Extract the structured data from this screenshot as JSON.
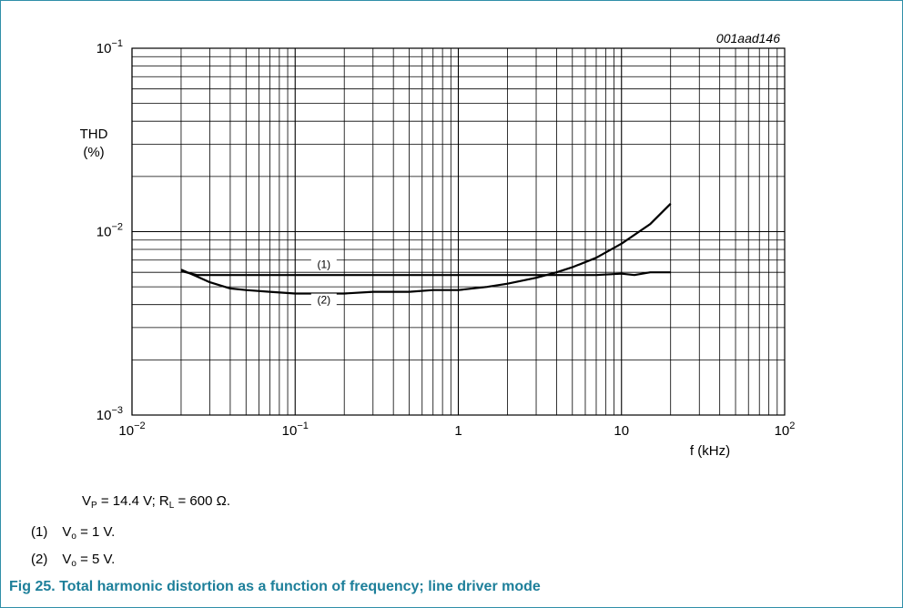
{
  "figure_id": "001aad146",
  "chart_data": {
    "type": "line",
    "ylabel": "THD",
    "yunit": "(%)",
    "xlabel": "f (kHz)",
    "xscale": "log",
    "yscale": "log",
    "xlim": [
      0.01,
      100
    ],
    "ylim": [
      0.001,
      0.1
    ],
    "grid": true,
    "x_ticks": [
      {
        "value": 0.01,
        "base": "10",
        "exp": "−2"
      },
      {
        "value": 0.1,
        "base": "10",
        "exp": "−1"
      },
      {
        "value": 1,
        "base": "1",
        "exp": ""
      },
      {
        "value": 10,
        "base": "10",
        "exp": ""
      },
      {
        "value": 100,
        "base": "10",
        "exp": "2"
      }
    ],
    "y_ticks": [
      {
        "value": 0.1,
        "base": "10",
        "exp": "−1"
      },
      {
        "value": 0.01,
        "base": "10",
        "exp": "−2"
      },
      {
        "value": 0.001,
        "base": "10",
        "exp": "−3"
      }
    ],
    "series": [
      {
        "name": "(1)",
        "label_at": [
          0.15,
          0.0064
        ],
        "points": [
          [
            0.02,
            0.0061
          ],
          [
            0.025,
            0.0058
          ],
          [
            0.03,
            0.0058
          ],
          [
            0.04,
            0.0058
          ],
          [
            0.05,
            0.0058
          ],
          [
            0.07,
            0.0058
          ],
          [
            0.1,
            0.0058
          ],
          [
            0.15,
            0.0058
          ],
          [
            0.2,
            0.0058
          ],
          [
            0.3,
            0.0058
          ],
          [
            0.5,
            0.0058
          ],
          [
            0.7,
            0.0058
          ],
          [
            1,
            0.0058
          ],
          [
            1.5,
            0.0058
          ],
          [
            2,
            0.0058
          ],
          [
            3,
            0.0058
          ],
          [
            5,
            0.0058
          ],
          [
            7,
            0.0058
          ],
          [
            10,
            0.0059
          ],
          [
            12,
            0.0058
          ],
          [
            15,
            0.006
          ],
          [
            20,
            0.006
          ]
        ]
      },
      {
        "name": "(2)",
        "label_at": [
          0.15,
          0.0041
        ],
        "points": [
          [
            0.02,
            0.0062
          ],
          [
            0.025,
            0.0057
          ],
          [
            0.03,
            0.0053
          ],
          [
            0.04,
            0.0049
          ],
          [
            0.05,
            0.0048
          ],
          [
            0.07,
            0.0047
          ],
          [
            0.1,
            0.0046
          ],
          [
            0.15,
            0.0046
          ],
          [
            0.2,
            0.0046
          ],
          [
            0.3,
            0.0047
          ],
          [
            0.5,
            0.0047
          ],
          [
            0.7,
            0.0048
          ],
          [
            1,
            0.0048
          ],
          [
            1.5,
            0.005
          ],
          [
            2,
            0.0052
          ],
          [
            3,
            0.0056
          ],
          [
            4,
            0.006
          ],
          [
            5,
            0.0064
          ],
          [
            7,
            0.0072
          ],
          [
            10,
            0.0086
          ],
          [
            15,
            0.011
          ],
          [
            20,
            0.0142
          ]
        ]
      }
    ]
  },
  "notes": {
    "conditions": {
      "v_main": "V",
      "v_sub": "P",
      "v_val": " = 14.4 V; R",
      "r_sub": "L",
      "r_val": " = 600 Ω."
    },
    "item1": {
      "num": "(1)",
      "v_main": "V",
      "v_sub": "o",
      "v_val": " = 1 V."
    },
    "item2": {
      "num": "(2)",
      "v_main": "V",
      "v_sub": "o",
      "v_val": " = 5 V."
    }
  },
  "caption": "Fig 25. Total harmonic distortion as a function of frequency; line driver mode",
  "colors": {
    "frame": "#2f8fa8",
    "caption": "#1d7f9a",
    "line": "#000000"
  }
}
